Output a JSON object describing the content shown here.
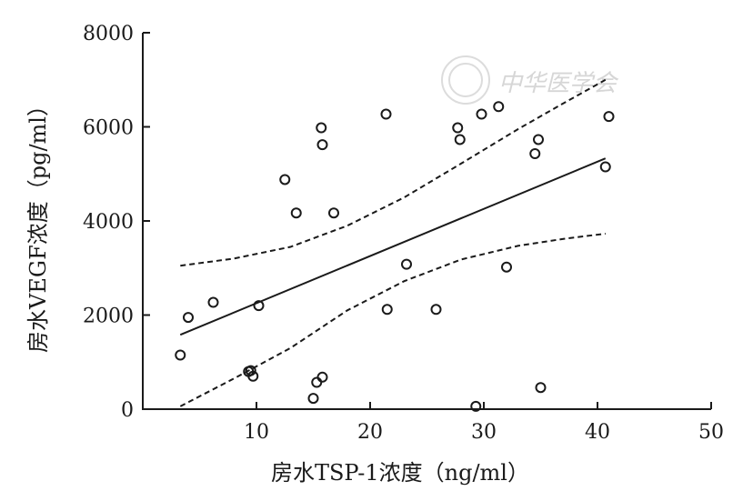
{
  "chart_data": {
    "type": "scatter",
    "xlabel": "房水TSP-1浓度（ng/ml）",
    "ylabel": "房水VEGF浓度（pg/ml）",
    "xlim": [
      0,
      50
    ],
    "ylim": [
      0,
      8000
    ],
    "xticks": [
      10,
      20,
      30,
      40,
      50
    ],
    "yticks": [
      0,
      2000,
      4000,
      6000,
      8000
    ],
    "watermark": "中华医学会",
    "points": [
      {
        "x": 3.3,
        "y": 1150
      },
      {
        "x": 4.0,
        "y": 1950
      },
      {
        "x": 6.2,
        "y": 2270
      },
      {
        "x": 9.3,
        "y": 800
      },
      {
        "x": 9.5,
        "y": 820
      },
      {
        "x": 9.7,
        "y": 700
      },
      {
        "x": 10.2,
        "y": 2200
      },
      {
        "x": 12.5,
        "y": 4880
      },
      {
        "x": 13.5,
        "y": 4170
      },
      {
        "x": 15.0,
        "y": 230
      },
      {
        "x": 15.3,
        "y": 570
      },
      {
        "x": 15.7,
        "y": 5980
      },
      {
        "x": 15.8,
        "y": 5620
      },
      {
        "x": 15.8,
        "y": 680
      },
      {
        "x": 16.8,
        "y": 4170
      },
      {
        "x": 21.4,
        "y": 6270
      },
      {
        "x": 21.5,
        "y": 2120
      },
      {
        "x": 23.2,
        "y": 3080
      },
      {
        "x": 25.8,
        "y": 2120
      },
      {
        "x": 27.7,
        "y": 5980
      },
      {
        "x": 27.9,
        "y": 5730
      },
      {
        "x": 29.3,
        "y": 60
      },
      {
        "x": 29.8,
        "y": 6270
      },
      {
        "x": 31.3,
        "y": 6430
      },
      {
        "x": 32.0,
        "y": 3020
      },
      {
        "x": 34.5,
        "y": 5430
      },
      {
        "x": 34.8,
        "y": 5730
      },
      {
        "x": 35.0,
        "y": 460
      },
      {
        "x": 40.7,
        "y": 5150
      },
      {
        "x": 41.0,
        "y": 6220
      }
    ],
    "fit_line": [
      {
        "x": 3.3,
        "y": 1580
      },
      {
        "x": 40.7,
        "y": 5330
      }
    ],
    "ci_upper": [
      {
        "x": 3.3,
        "y": 3050
      },
      {
        "x": 8,
        "y": 3200
      },
      {
        "x": 13,
        "y": 3450
      },
      {
        "x": 18,
        "y": 3900
      },
      {
        "x": 23,
        "y": 4500
      },
      {
        "x": 28,
        "y": 5220
      },
      {
        "x": 33,
        "y": 5950
      },
      {
        "x": 37,
        "y": 6500
      },
      {
        "x": 40.7,
        "y": 7000
      }
    ],
    "ci_lower": [
      {
        "x": 3.3,
        "y": 60
      },
      {
        "x": 8,
        "y": 650
      },
      {
        "x": 13,
        "y": 1300
      },
      {
        "x": 18,
        "y": 2100
      },
      {
        "x": 23,
        "y": 2720
      },
      {
        "x": 28,
        "y": 3180
      },
      {
        "x": 33,
        "y": 3470
      },
      {
        "x": 37,
        "y": 3620
      },
      {
        "x": 40.7,
        "y": 3730
      }
    ]
  }
}
